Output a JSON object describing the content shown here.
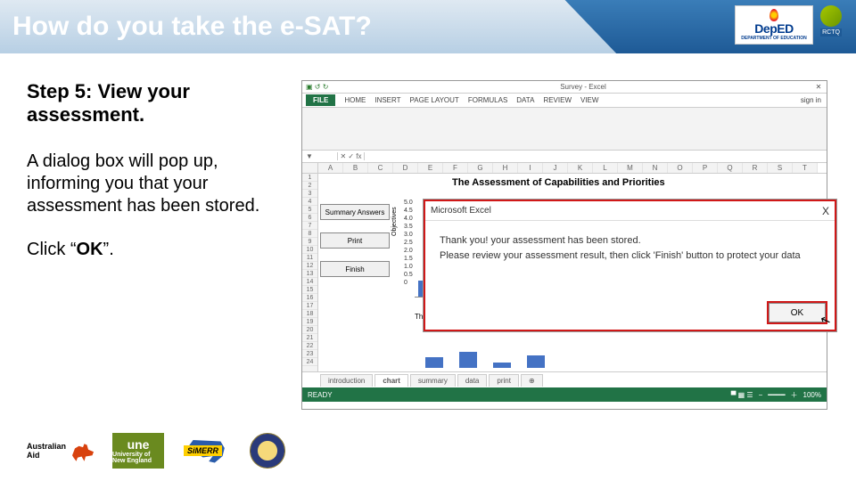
{
  "title": "How do you take the e-SAT?",
  "rctq_label": "RCTQ",
  "deped": {
    "top": "DepED",
    "bottom": "DEPARTMENT OF EDUCATION"
  },
  "step_title": "Step 5: View your assessment.",
  "description_1": "A dialog box will pop up, informing you that your assessment has been stored.",
  "click_prefix": "Click “",
  "click_bold": "OK",
  "click_suffix": "”.",
  "excel": {
    "window_title": "Survey - Excel",
    "close_x": "✕",
    "qat": "▣ ↺ ↻",
    "file_tab": "FILE",
    "ribbon_tabs": [
      "HOME",
      "INSERT",
      "PAGE LAYOUT",
      "FORMULAS",
      "DATA",
      "REVIEW",
      "VIEW"
    ],
    "signin": "sign in",
    "namebox": "▼",
    "fx": "✕ ✓ fx",
    "columns": [
      "A",
      "B",
      "C",
      "D",
      "E",
      "F",
      "G",
      "H",
      "I",
      "J",
      "K",
      "L",
      "M",
      "N",
      "O",
      "P",
      "Q",
      "R",
      "S",
      "T"
    ],
    "row_count": 24,
    "sheet_title": "The Assessment of Capabilities and Priorities",
    "buttons": {
      "summary": "Summary Answers",
      "print": "Print",
      "finish": "Finish"
    },
    "axis_label": "Objectives",
    "axis_values": [
      "5.0",
      "4.5",
      "4.0",
      "3.5",
      "3.0",
      "2.5",
      "2.0",
      "1.5",
      "1.0",
      "0.5",
      "0"
    ],
    "chart_bars": [
      18,
      18,
      18,
      18,
      18,
      18,
      18,
      18,
      18,
      18,
      18,
      18
    ],
    "bottom_bars": [
      12,
      18,
      6,
      14
    ],
    "bar_color": "#4472c4",
    "chart_bottom": "The I",
    "dialog": {
      "title": "Microsoft Excel",
      "x": "X",
      "line1": "Thank you! your assessment has been stored.",
      "line2": "Please review your assessment result, then click 'Finish' button to protect your data",
      "ok": "OK"
    },
    "sheet_tabs": {
      "items": [
        "introduction",
        "chart",
        "summary",
        "data",
        "print"
      ],
      "active_index": 1,
      "plus": "⊕"
    },
    "status": {
      "ready": "READY",
      "zoom_minus": "−",
      "zoom_plus": "＋",
      "zoom": "100%",
      "icons": "▀ ▦ ☰"
    }
  },
  "footer": {
    "aus_aid_1": "Australian",
    "aus_aid_2": "Aid",
    "une_big": "une",
    "une_small": "University of New England",
    "simerr": "SiMERR"
  }
}
